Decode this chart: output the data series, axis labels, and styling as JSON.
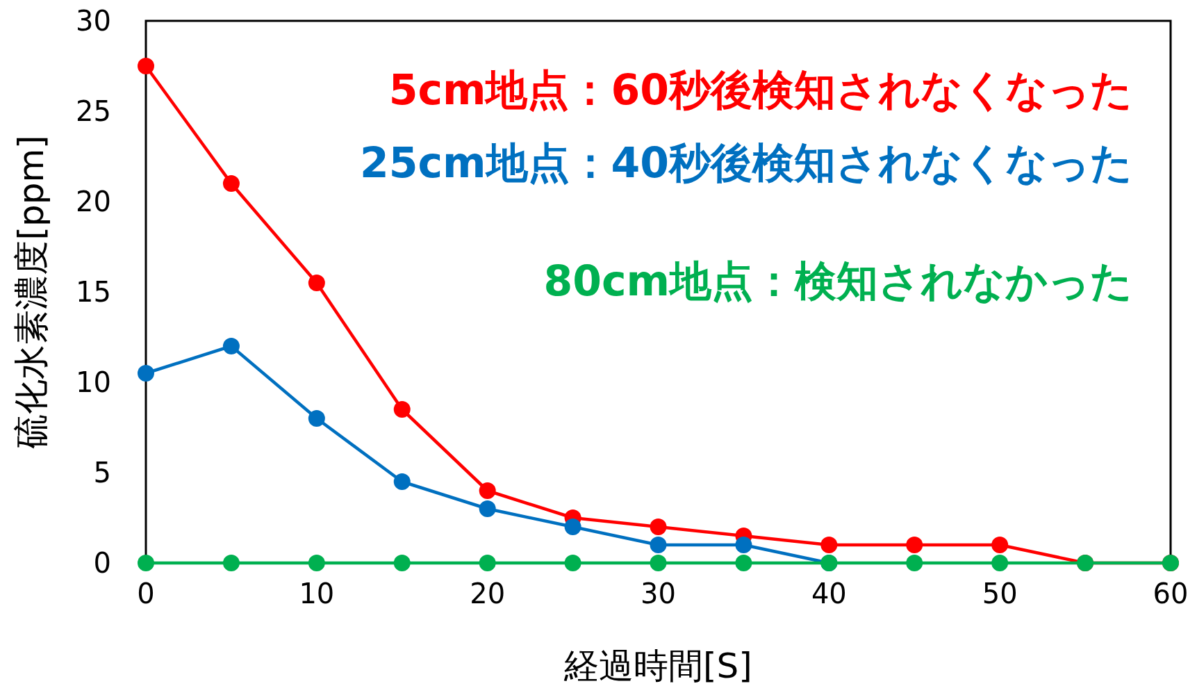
{
  "chart_data": {
    "type": "line",
    "xlabel": "経過時間[S]",
    "ylabel": "硫化水素濃度[ppm]",
    "x": [
      0,
      5,
      10,
      15,
      20,
      25,
      30,
      35,
      40,
      45,
      50,
      55,
      60
    ],
    "xlim": [
      0,
      60
    ],
    "xticks": [
      0,
      10,
      20,
      30,
      40,
      50,
      60
    ],
    "ylim": [
      0,
      30
    ],
    "yticks": [
      0,
      5,
      10,
      15,
      20,
      25,
      30
    ],
    "grid": false,
    "marker": "circle",
    "line_style": "solid",
    "legend": "top right",
    "series": [
      {
        "name": "5cm地点：60秒後検知されなくなった",
        "color": "#ff0000",
        "values": [
          27.5,
          21,
          15.5,
          8.5,
          4,
          2.5,
          2,
          1.5,
          1,
          1,
          1,
          0,
          0
        ]
      },
      {
        "name": "25cm地点：40秒後検知されなくなった",
        "color": "#0070c0",
        "values": [
          10.5,
          12,
          8,
          4.5,
          3,
          2,
          1,
          1,
          0,
          null,
          null,
          null,
          null
        ]
      },
      {
        "name": "80cm地点：検知されなかった",
        "color": "#00b050",
        "values": [
          0,
          0,
          0,
          0,
          0,
          0,
          0,
          0,
          0,
          0,
          0,
          0,
          0
        ]
      }
    ]
  }
}
